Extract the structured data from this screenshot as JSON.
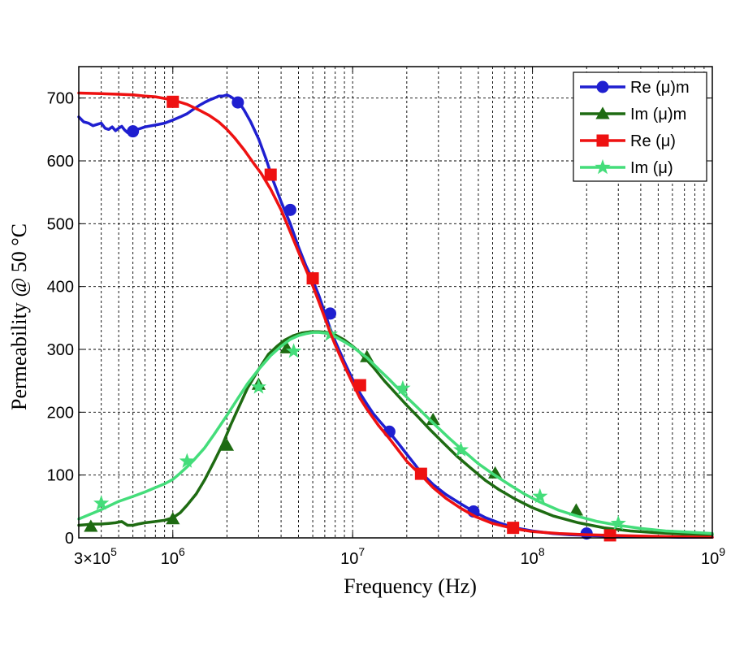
{
  "chart_data": {
    "type": "line",
    "title": "",
    "xlabel": "Frequency (Hz)",
    "ylabel": "Permeability @ 50 °C",
    "xscale": "log",
    "xlim": [
      300000,
      1000000000
    ],
    "ylim": [
      0,
      750
    ],
    "grid": true,
    "legend_position": "top-right",
    "x_ticks": [
      {
        "value": 300000,
        "mantissa": "3×10",
        "exp": "5"
      },
      {
        "value": 1000000,
        "mantissa": "10",
        "exp": "6"
      },
      {
        "value": 10000000,
        "mantissa": "10",
        "exp": "7"
      },
      {
        "value": 100000000,
        "mantissa": "10",
        "exp": "8"
      },
      {
        "value": 1000000000,
        "mantissa": "10",
        "exp": "9"
      }
    ],
    "y_ticks": [
      0,
      100,
      200,
      300,
      400,
      500,
      600,
      700
    ],
    "series": [
      {
        "name": "Re (μ)m",
        "color": "#1f1fd0",
        "marker": "circle",
        "x": [
          300000,
          320000,
          340000,
          360000,
          380000,
          400000,
          420000,
          440000,
          460000,
          480000,
          500000,
          520000,
          540000,
          560000,
          580000,
          600000,
          650000,
          700000,
          800000,
          900000,
          1000000,
          1100000,
          1200000,
          1300000,
          1400000,
          1500000,
          1600000,
          1700000,
          1800000,
          1900000,
          2000000,
          2100000,
          2200000,
          2350000,
          2500000,
          2700000,
          3000000,
          3300000,
          3600000,
          4000000,
          4500000,
          5000000,
          5500000,
          6000000,
          6500000,
          7000000,
          7500000,
          8000000,
          9000000,
          10000000,
          11000000,
          12000000,
          13000000,
          14000000,
          16000000,
          18000000,
          20000000,
          22000000,
          24000000,
          28000000,
          33000000,
          40000000,
          47000000,
          55000000,
          65000000,
          80000000,
          100000000,
          130000000,
          160000000,
          200000000,
          250000000,
          320000000,
          400000000,
          500000000,
          650000000,
          800000000,
          1000000000
        ],
        "y": [
          670,
          662,
          660,
          656,
          658,
          660,
          652,
          650,
          654,
          648,
          652,
          655,
          649,
          645,
          648,
          650,
          651,
          654,
          657,
          660,
          665,
          670,
          675,
          682,
          688,
          693,
          697,
          700,
          703,
          703,
          705,
          702,
          698,
          692,
          680,
          663,
          635,
          603,
          570,
          535,
          500,
          463,
          433,
          410,
          385,
          358,
          333,
          313,
          280,
          252,
          230,
          213,
          198,
          187,
          168,
          150,
          133,
          118,
          104,
          85,
          69,
          54,
          42,
          32,
          24,
          16,
          11,
          7,
          5,
          4,
          3,
          2,
          2,
          2,
          1,
          1,
          1
        ],
        "markers": [
          [
            600000,
            647
          ],
          [
            2300000,
            693
          ],
          [
            4500000,
            522
          ],
          [
            7500000,
            357
          ],
          [
            16000000,
            169
          ],
          [
            47000000,
            42
          ],
          [
            200000000,
            7
          ]
        ]
      },
      {
        "name": "Im (μ)m",
        "color": "#1e6b12",
        "marker": "triangle",
        "x": [
          300000,
          330000,
          360000,
          400000,
          440000,
          480000,
          520000,
          560000,
          600000,
          640000,
          700000,
          800000,
          900000,
          1000000,
          1100000,
          1200000,
          1350000,
          1500000,
          1700000,
          1900000,
          2100000,
          2300000,
          2600000,
          3000000,
          3400000,
          3800000,
          4200000,
          4700000,
          5200000,
          5800000,
          6500000,
          7200000,
          8000000,
          9000000,
          10000000,
          11000000,
          13000000,
          15000000,
          17000000,
          20000000,
          23000000,
          27000000,
          32000000,
          38000000,
          45000000,
          55000000,
          65000000,
          80000000,
          100000000,
          130000000,
          180000000,
          250000000,
          350000000,
          500000000,
          700000000,
          1000000000
        ],
        "y": [
          20,
          21,
          22,
          22,
          23,
          24,
          26,
          20,
          20,
          22,
          24,
          26,
          28,
          32,
          40,
          52,
          70,
          92,
          122,
          150,
          180,
          205,
          238,
          268,
          292,
          305,
          315,
          322,
          326,
          328,
          328,
          327,
          323,
          315,
          305,
          295,
          272,
          250,
          233,
          211,
          193,
          172,
          151,
          130,
          112,
          91,
          77,
          62,
          48,
          35,
          24,
          16,
          11,
          8,
          6,
          5
        ],
        "markers": [
          [
            350000,
            18
          ],
          [
            1000000,
            30
          ],
          [
            2000000,
            147
          ],
          [
            3000000,
            244
          ],
          [
            4300000,
            302
          ],
          [
            12000000,
            288
          ],
          [
            28000000,
            188
          ],
          [
            62000000,
            103
          ],
          [
            175000000,
            44
          ]
        ]
      },
      {
        "name": "Re (μ)",
        "color": "#ee1111",
        "marker": "square",
        "x": [
          300000,
          400000,
          500000,
          600000,
          700000,
          800000,
          1000000,
          1200000,
          1400000,
          1600000,
          1800000,
          2000000,
          2200000,
          2500000,
          2800000,
          3100000,
          3500000,
          4000000,
          4500000,
          5000000,
          5500000,
          6000000,
          6500000,
          7000000,
          7500000,
          8000000,
          9000000,
          10000000,
          11000000,
          12000000,
          14000000,
          16000000,
          18000000,
          20000000,
          22000000,
          24000000,
          28000000,
          33000000,
          40000000,
          48000000,
          60000000,
          78000000,
          100000000,
          140000000,
          200000000,
          270000000,
          400000000,
          600000000,
          1000000000
        ],
        "y": [
          708,
          707,
          706,
          705,
          703,
          702,
          697,
          690,
          681,
          672,
          662,
          650,
          637,
          617,
          597,
          580,
          555,
          522,
          487,
          455,
          427,
          401,
          375,
          350,
          327,
          307,
          274,
          246,
          222,
          205,
          178,
          158,
          139,
          122,
          110,
          100,
          80,
          63,
          47,
          34,
          23,
          15,
          10,
          7,
          5,
          4,
          3,
          2,
          1
        ],
        "markers": [
          [
            1000000,
            694
          ],
          [
            3500000,
            578
          ],
          [
            6000000,
            413
          ],
          [
            11000000,
            243
          ],
          [
            24000000,
            102
          ],
          [
            78000000,
            16
          ],
          [
            270000000,
            4
          ]
        ]
      },
      {
        "name": "Im (μ)",
        "color": "#44dd7a",
        "marker": "star",
        "x": [
          300000,
          350000,
          400000,
          450000,
          500000,
          600000,
          700000,
          800000,
          900000,
          1000000,
          1100000,
          1200000,
          1300000,
          1500000,
          1700000,
          2000000,
          2300000,
          2600000,
          3000000,
          3500000,
          4000000,
          4500000,
          5000000,
          5500000,
          6000000,
          6500000,
          7000000,
          7500000,
          8000000,
          9000000,
          10000000,
          11000000,
          12000000,
          14000000,
          16000000,
          19000000,
          23000000,
          28000000,
          34000000,
          40000000,
          50000000,
          60000000,
          75000000,
          90000000,
          110000000,
          140000000,
          180000000,
          230000000,
          300000000,
          400000000,
          550000000,
          750000000,
          1000000000
        ],
        "y": [
          30,
          38,
          45,
          52,
          58,
          66,
          73,
          80,
          86,
          93,
          103,
          113,
          123,
          143,
          165,
          195,
          222,
          245,
          268,
          290,
          305,
          316,
          322,
          325,
          327,
          327,
          326,
          324,
          320,
          312,
          304,
          295,
          287,
          268,
          252,
          230,
          207,
          183,
          160,
          142,
          118,
          102,
          84,
          70,
          57,
          44,
          34,
          26,
          20,
          15,
          11,
          9,
          7
        ],
        "markers": [
          [
            400000,
            55
          ],
          [
            1200000,
            122
          ],
          [
            3000000,
            240
          ],
          [
            4700000,
            297
          ],
          [
            7500000,
            324
          ],
          [
            19000000,
            238
          ],
          [
            40000000,
            140
          ],
          [
            110000000,
            66
          ],
          [
            300000000,
            23
          ]
        ]
      }
    ]
  }
}
